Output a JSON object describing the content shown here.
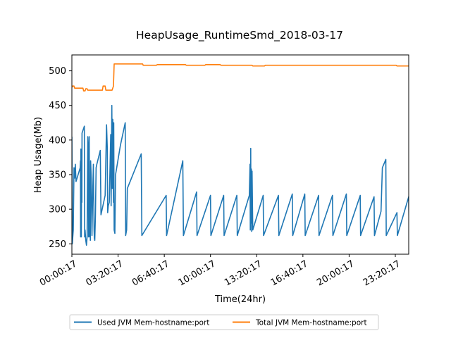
{
  "chart_data": {
    "type": "line",
    "title": "HeapUsage_RuntimeSmd_2018-03-17",
    "xlabel": "Time(24hr)",
    "ylabel": "Heap Usage(Mb)",
    "xlim": [
      0,
      24.3
    ],
    "ylim": [
      235,
      523
    ],
    "x_ticks": [
      {
        "value": 0,
        "label": "00:00:17"
      },
      {
        "value": 3.3333,
        "label": "03:20:17"
      },
      {
        "value": 6.6667,
        "label": "06:40:17"
      },
      {
        "value": 10.0,
        "label": "10:00:17"
      },
      {
        "value": 13.3333,
        "label": "13:20:17"
      },
      {
        "value": 16.6667,
        "label": "16:40:17"
      },
      {
        "value": 20.0,
        "label": "20:00:17"
      },
      {
        "value": 23.3333,
        "label": "23:20:17"
      }
    ],
    "y_ticks": [
      250,
      300,
      350,
      400,
      450,
      500
    ],
    "x_unit": "hours since 00:00:17",
    "legend_position": "bottom-center",
    "series": [
      {
        "name": "Used JVM Mem-hostname:port",
        "color": "#1f77b4",
        "points": [
          [
            0.0,
            405
          ],
          [
            0.03,
            250
          ],
          [
            0.1,
            270
          ],
          [
            0.15,
            360
          ],
          [
            0.2,
            345
          ],
          [
            0.25,
            365
          ],
          [
            0.3,
            340
          ],
          [
            0.6,
            360
          ],
          [
            0.62,
            370
          ],
          [
            0.63,
            260
          ],
          [
            0.65,
            387
          ],
          [
            0.68,
            260
          ],
          [
            0.7,
            380
          ],
          [
            0.72,
            310
          ],
          [
            0.73,
            410
          ],
          [
            0.9,
            420
          ],
          [
            0.92,
            260
          ],
          [
            0.95,
            270
          ],
          [
            1.0,
            255
          ],
          [
            1.05,
            248
          ],
          [
            1.1,
            260
          ],
          [
            1.15,
            405
          ],
          [
            1.18,
            390
          ],
          [
            1.2,
            260
          ],
          [
            1.25,
            405
          ],
          [
            1.28,
            260
          ],
          [
            1.3,
            335
          ],
          [
            1.33,
            255
          ],
          [
            1.35,
            370
          ],
          [
            1.4,
            345
          ],
          [
            1.45,
            262
          ],
          [
            1.5,
            320
          ],
          [
            1.55,
            365
          ],
          [
            1.6,
            270
          ],
          [
            1.62,
            258
          ],
          [
            1.65,
            255
          ],
          [
            1.7,
            290
          ],
          [
            1.75,
            360
          ],
          [
            1.8,
            365
          ],
          [
            2.05,
            385
          ],
          [
            2.1,
            292
          ],
          [
            2.4,
            320
          ],
          [
            2.5,
            422
          ],
          [
            2.55,
            390
          ],
          [
            2.58,
            295
          ],
          [
            2.63,
            305
          ],
          [
            2.7,
            310
          ],
          [
            2.8,
            408
          ],
          [
            2.83,
            305
          ],
          [
            2.88,
            450
          ],
          [
            2.92,
            330
          ],
          [
            2.95,
            430
          ],
          [
            3.0,
            310
          ],
          [
            3.02,
            425
          ],
          [
            3.05,
            270
          ],
          [
            3.1,
            265
          ],
          [
            3.15,
            350
          ],
          [
            3.5,
            392
          ],
          [
            3.85,
            425
          ],
          [
            3.88,
            262
          ],
          [
            3.95,
            270
          ],
          [
            4.0,
            330
          ],
          [
            5.0,
            380
          ],
          [
            5.05,
            262
          ],
          [
            6.8,
            320
          ],
          [
            6.83,
            262
          ],
          [
            8.0,
            370
          ],
          [
            8.05,
            262
          ],
          [
            9.0,
            325
          ],
          [
            9.03,
            262
          ],
          [
            10.0,
            320
          ],
          [
            10.03,
            262
          ],
          [
            10.95,
            320
          ],
          [
            10.98,
            262
          ],
          [
            11.9,
            320
          ],
          [
            11.93,
            262
          ],
          [
            12.8,
            320
          ],
          [
            12.85,
            365
          ],
          [
            12.87,
            270
          ],
          [
            12.9,
            388
          ],
          [
            12.92,
            280
          ],
          [
            12.95,
            358
          ],
          [
            12.97,
            268
          ],
          [
            13.0,
            355
          ],
          [
            13.05,
            270
          ],
          [
            13.8,
            320
          ],
          [
            13.83,
            262
          ],
          [
            14.9,
            320
          ],
          [
            14.93,
            262
          ],
          [
            15.9,
            322
          ],
          [
            15.93,
            262
          ],
          [
            16.8,
            322
          ],
          [
            16.83,
            262
          ],
          [
            17.8,
            320
          ],
          [
            17.83,
            262
          ],
          [
            18.8,
            320
          ],
          [
            18.83,
            262
          ],
          [
            19.8,
            322
          ],
          [
            19.83,
            262
          ],
          [
            20.8,
            320
          ],
          [
            20.83,
            262
          ],
          [
            21.8,
            318
          ],
          [
            21.83,
            262
          ],
          [
            22.3,
            297
          ],
          [
            22.4,
            360
          ],
          [
            22.65,
            372
          ],
          [
            22.68,
            262
          ],
          [
            23.45,
            295
          ],
          [
            23.48,
            262
          ],
          [
            24.3,
            318
          ],
          [
            24.33,
            262
          ]
        ]
      },
      {
        "name": "Total JVM Mem-hostname:port",
        "color": "#ff7f0e",
        "points": [
          [
            0.0,
            476
          ],
          [
            0.05,
            478
          ],
          [
            0.15,
            478
          ],
          [
            0.2,
            475
          ],
          [
            0.8,
            475
          ],
          [
            0.85,
            471
          ],
          [
            0.95,
            471
          ],
          [
            1.0,
            474
          ],
          [
            1.1,
            474
          ],
          [
            1.15,
            472
          ],
          [
            2.2,
            472
          ],
          [
            2.25,
            478
          ],
          [
            2.4,
            478
          ],
          [
            2.45,
            472
          ],
          [
            2.9,
            472
          ],
          [
            2.95,
            475
          ],
          [
            3.0,
            478
          ],
          [
            3.05,
            510
          ],
          [
            5.1,
            510
          ],
          [
            5.15,
            508
          ],
          [
            6.1,
            508
          ],
          [
            6.15,
            509
          ],
          [
            8.2,
            509
          ],
          [
            8.25,
            508
          ],
          [
            9.6,
            508
          ],
          [
            9.65,
            509
          ],
          [
            10.7,
            509
          ],
          [
            10.75,
            508
          ],
          [
            13.0,
            508
          ],
          [
            13.05,
            507
          ],
          [
            13.9,
            507
          ],
          [
            13.95,
            508
          ],
          [
            23.4,
            508
          ],
          [
            23.45,
            507
          ],
          [
            24.4,
            507
          ],
          [
            24.45,
            508
          ],
          [
            24.6,
            508
          ]
        ]
      }
    ]
  }
}
